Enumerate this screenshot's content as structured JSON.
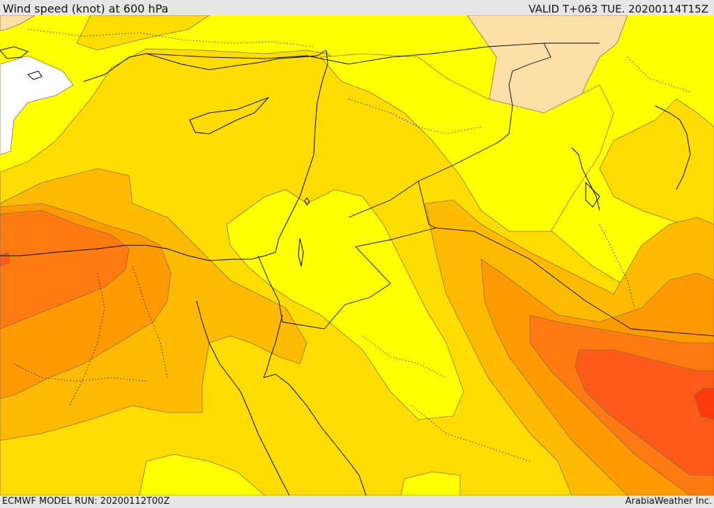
{
  "header": {
    "title": "Wind speed (knot) at 600 hPa",
    "valid": "VALID T+063 TUE. 20200114T15Z"
  },
  "footer": {
    "model_run": "ECMWF MODEL RUN: 20200112T00Z",
    "credit": "ArabiaWeather Inc."
  },
  "map": {
    "region": "Eastern Mediterranean & Middle East",
    "variable": "wind speed",
    "unit": "knot",
    "level": "600 hPa",
    "colors": {
      "background_fill": "#ffff00",
      "calm_light": "#fde0a8",
      "calm_white": "#ffffff",
      "band_1": "#ffdd00",
      "band_2": "#ffbb00",
      "band_3": "#ff9a00",
      "band_4": "#ff7a10",
      "band_5": "#ff5a1a",
      "band_6": "#ff3a0a",
      "contour_line": "#8a6a40",
      "border_line": "#000000"
    }
  }
}
